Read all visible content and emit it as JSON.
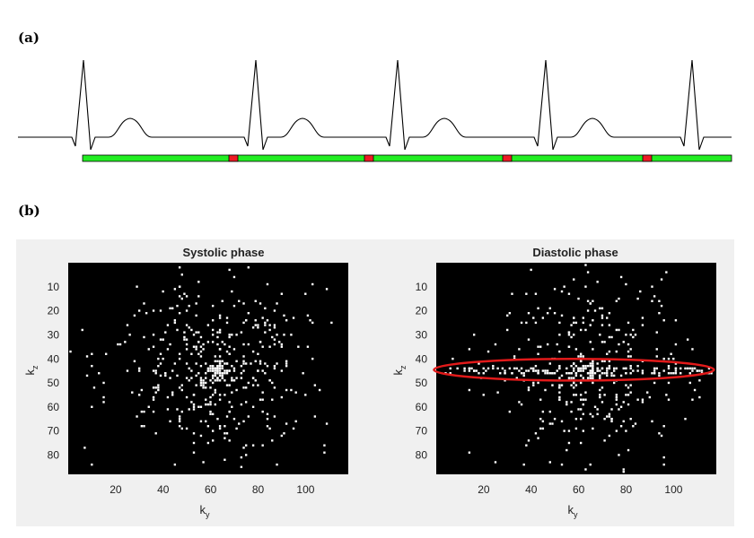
{
  "labels": {
    "a": "(a)",
    "b": "(b)"
  },
  "ecg": {
    "line_color": "#000000",
    "acquisition_color": "#22ee22",
    "gap_color": "#ee1c24",
    "acquisition_segments": 5,
    "gap_count": 4
  },
  "chart_data": [
    {
      "type": "heatmap",
      "title": "Systolic phase",
      "xlabel": "k",
      "xlabel_sub": "y",
      "ylabel": "k",
      "ylabel_sub": "z",
      "xlim": [
        0,
        118
      ],
      "ylim": [
        88,
        0
      ],
      "xticks": [
        "20",
        "40",
        "60",
        "80",
        "100"
      ],
      "xtick_values": [
        20,
        40,
        60,
        80,
        100
      ],
      "yticks": [
        "10",
        "20",
        "30",
        "40",
        "50",
        "60",
        "70",
        "80"
      ],
      "ytick_values": [
        10,
        20,
        30,
        40,
        50,
        60,
        70,
        80
      ],
      "sampling": {
        "description": "random variable-density sampling",
        "center": [
          63,
          45
        ],
        "spread_ky": 22,
        "spread_kz": 20,
        "n_points": 430,
        "dense_center_radius": 4
      },
      "background": "#000000",
      "marker_color": "#ffffff"
    },
    {
      "type": "heatmap",
      "title": "Diastolic phase",
      "xlabel": "k",
      "xlabel_sub": "y",
      "ylabel": "k",
      "ylabel_sub": "z",
      "xlim": [
        0,
        118
      ],
      "ylim": [
        88,
        0
      ],
      "xticks": [
        "20",
        "40",
        "60",
        "80",
        "100"
      ],
      "xtick_values": [
        20,
        40,
        60,
        80,
        100
      ],
      "yticks": [
        "10",
        "20",
        "30",
        "40",
        "50",
        "60",
        "70",
        "80"
      ],
      "ytick_values": [
        10,
        20,
        30,
        40,
        50,
        60,
        70,
        80
      ],
      "sampling": {
        "description": "random variable-density sampling with fully sampled central kz rows",
        "center": [
          63,
          45
        ],
        "spread_ky": 22,
        "spread_kz": 20,
        "n_points": 360,
        "dense_center_radius": 4,
        "dense_band_kz": [
          44,
          46
        ],
        "dense_band_points": 110
      },
      "background": "#000000",
      "marker_color": "#ffffff",
      "highlight": {
        "shape": "ellipse",
        "color": "#e21a1a",
        "ky_center": 58,
        "kz_center": 44.5,
        "ky_radius": 59,
        "kz_radius": 4.5
      }
    }
  ]
}
